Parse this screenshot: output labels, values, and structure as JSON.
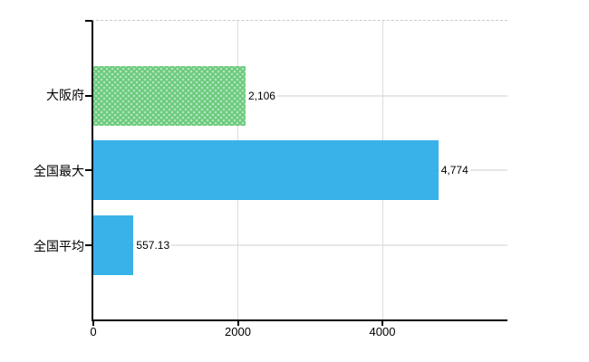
{
  "chart_data": {
    "type": "bar",
    "orientation": "horizontal",
    "title": "",
    "xlabel": "",
    "ylabel": "",
    "categories": [
      "大阪府",
      "全国最大",
      "全国平均"
    ],
    "values": [
      2106,
      4774,
      557.13
    ],
    "value_labels": [
      "2,106",
      "4,774",
      "557.13"
    ],
    "bar_colors": [
      "#68ca7a",
      "#39b2ea",
      "#39b2ea"
    ],
    "bar_patterns": [
      "dots",
      "solid",
      "solid"
    ],
    "x_ticks": [
      0,
      2000,
      4000
    ],
    "x_tick_labels": [
      "0",
      "2000",
      "4000"
    ],
    "xlim": [
      0,
      5730
    ],
    "grid": true,
    "legend": false
  },
  "colors": {
    "background": "#ffffff",
    "axis": "#000000",
    "vertical_gridline": "#dcdcdc",
    "category_gridline": "#ccd2cc",
    "plot_top_border": "#c9c9c9",
    "text": "#000000"
  }
}
